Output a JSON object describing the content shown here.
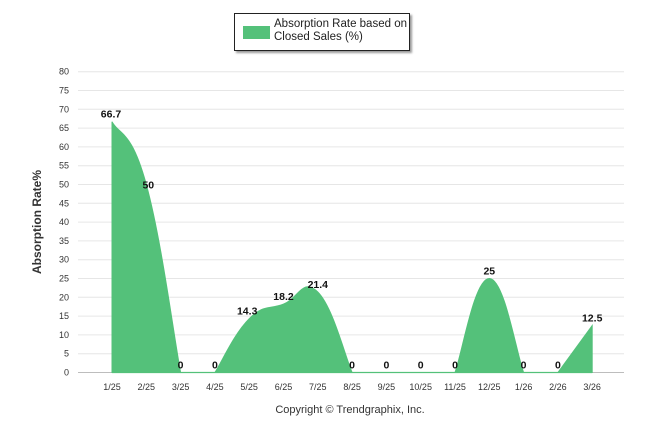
{
  "legend": {
    "label": "Absorption Rate based on Closed Sales (%)",
    "color": "#54C17A"
  },
  "copyright": "Copyright © Trendgraphix, Inc.",
  "chart_data": {
    "type": "area",
    "title": "",
    "xlabel": "",
    "ylabel": "Absorption Rate%",
    "ylim": [
      0,
      80
    ],
    "ytick_step": 5,
    "grid": true,
    "legend_position": "top-center",
    "series": [
      {
        "name": "Absorption Rate based on Closed Sales (%)",
        "color": "#54C17A",
        "categories": [
          "1/25",
          "2/25",
          "3/25",
          "4/25",
          "5/25",
          "6/25",
          "7/25",
          "8/25",
          "9/25",
          "10/25",
          "11/25",
          "12/25",
          "1/26",
          "2/26",
          "3/26"
        ],
        "values": [
          66.7,
          50,
          0,
          0,
          14.3,
          18.2,
          21.4,
          0,
          0,
          0,
          0,
          25,
          0,
          0,
          12.5
        ],
        "labels": [
          "66.7",
          "50",
          "0",
          "0",
          "14.3",
          "18.2",
          "21.4",
          "0",
          "0",
          "0",
          "0",
          "25",
          "0",
          "0",
          "12.5"
        ]
      }
    ]
  }
}
